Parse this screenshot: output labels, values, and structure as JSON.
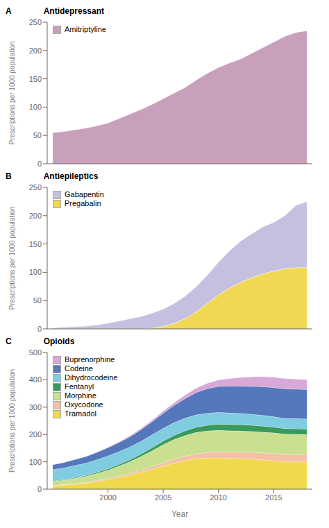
{
  "chart_data": [
    {
      "type": "area",
      "title": "Antidepressant",
      "annotations": [
        "A"
      ],
      "y_label": "Prescriptions per 1000 population",
      "x": [
        1995,
        1996,
        1997,
        1998,
        1999,
        2000,
        2001,
        2002,
        2003,
        2004,
        2005,
        2006,
        2007,
        2008,
        2009,
        2010,
        2011,
        2012,
        2013,
        2014,
        2015,
        2016,
        2017,
        2018
      ],
      "xlim": [
        1994.5,
        2018.5
      ],
      "xticks": [
        2000,
        2005,
        2010,
        2015
      ],
      "ylim": [
        0,
        250
      ],
      "yticks": [
        0,
        50,
        100,
        150,
        200,
        250
      ],
      "stacked": true,
      "legend": "upper left",
      "tick_labels": "y",
      "series": [
        {
          "name": "Amitriptyline",
          "color": "#c9a0bb",
          "values": [
            55,
            57,
            60,
            63,
            67,
            72,
            80,
            88,
            96,
            105,
            115,
            125,
            135,
            148,
            160,
            170,
            178,
            185,
            195,
            205,
            215,
            225,
            232,
            235
          ]
        }
      ]
    },
    {
      "type": "area",
      "title": "Antiepileptics",
      "annotations": [
        "B"
      ],
      "y_label": "Prescriptions per 1000 population",
      "x": [
        1995,
        1996,
        1997,
        1998,
        1999,
        2000,
        2001,
        2002,
        2003,
        2004,
        2005,
        2006,
        2007,
        2008,
        2009,
        2010,
        2011,
        2012,
        2013,
        2014,
        2015,
        2016,
        2017,
        2018
      ],
      "xlim": [
        1994.5,
        2018.5
      ],
      "xticks": [
        2000,
        2005,
        2010,
        2015
      ],
      "ylim": [
        0,
        250
      ],
      "yticks": [
        0,
        50,
        100,
        150,
        200,
        250
      ],
      "stacked": false,
      "legend": "upper left",
      "tick_labels": "y",
      "series": [
        {
          "name": "Gabapentin",
          "color": "#c5c0e0",
          "values": [
            2,
            3,
            4,
            5,
            7,
            10,
            14,
            18,
            22,
            28,
            35,
            45,
            58,
            75,
            95,
            118,
            138,
            155,
            168,
            180,
            188,
            200,
            218,
            225
          ]
        },
        {
          "name": "Pregabalin",
          "color": "#f0d855",
          "values": [
            0,
            0,
            0,
            0,
            0,
            0,
            0,
            0,
            0,
            1,
            4,
            10,
            18,
            30,
            45,
            60,
            72,
            82,
            90,
            97,
            102,
            106,
            108,
            108
          ]
        }
      ]
    },
    {
      "type": "area",
      "title": "Opioids",
      "annotations": [
        "C"
      ],
      "y_label": "Prescriptions per 1000 population",
      "x_label": "Year",
      "x": [
        1995,
        1996,
        1997,
        1998,
        1999,
        2000,
        2001,
        2002,
        2003,
        2004,
        2005,
        2006,
        2007,
        2008,
        2009,
        2010,
        2011,
        2012,
        2013,
        2014,
        2015,
        2016,
        2017,
        2018
      ],
      "xlim": [
        1994.5,
        2018.5
      ],
      "xticks": [
        2000,
        2005,
        2010,
        2015
      ],
      "ylim": [
        0,
        500
      ],
      "yticks": [
        0,
        100,
        200,
        300,
        400,
        500
      ],
      "stacked": true,
      "legend": "upper left",
      "series": [
        {
          "name": "Tramadol",
          "color": "#f0d94c",
          "values": [
            12,
            15,
            18,
            22,
            28,
            35,
            43,
            52,
            62,
            73,
            85,
            96,
            105,
            112,
            114,
            115,
            113,
            112,
            110,
            107,
            104,
            101,
            100,
            99
          ]
        },
        {
          "name": "Oxycodone",
          "color": "#f5c0a8",
          "values": [
            2,
            2,
            3,
            3,
            4,
            5,
            6,
            7,
            8,
            10,
            12,
            14,
            16,
            18,
            20,
            22,
            23,
            24,
            25,
            26,
            27,
            27,
            27,
            27
          ]
        },
        {
          "name": "Morphine",
          "color": "#c8e090",
          "values": [
            14,
            16,
            19,
            22,
            26,
            30,
            36,
            42,
            50,
            58,
            66,
            72,
            76,
            78,
            79,
            79,
            78,
            77,
            76,
            76,
            75,
            74,
            74,
            74
          ]
        },
        {
          "name": "Fentanyl",
          "color": "#3a9a5c",
          "values": [
            2,
            2,
            3,
            3,
            4,
            5,
            6,
            7,
            9,
            11,
            13,
            15,
            17,
            19,
            21,
            22,
            23,
            23,
            23,
            22,
            21,
            20,
            20,
            20
          ]
        },
        {
          "name": "Dihydrocodeine",
          "color": "#80cce0",
          "values": [
            42,
            43,
            44,
            45,
            46,
            47,
            47,
            47,
            47,
            47,
            47,
            47,
            46,
            45,
            44,
            43,
            42,
            41,
            40,
            39,
            38,
            37,
            37,
            37
          ]
        },
        {
          "name": "Codeine",
          "color": "#5577bb",
          "values": [
            18,
            20,
            22,
            25,
            27,
            30,
            33,
            37,
            42,
            48,
            55,
            63,
            72,
            82,
            90,
            95,
            98,
            100,
            102,
            105,
            107,
            108,
            108,
            108
          ]
        },
        {
          "name": "Buprenorphine",
          "color": "#d8a8d8",
          "values": [
            0,
            0,
            0,
            0,
            1,
            2,
            3,
            4,
            5,
            6,
            8,
            10,
            13,
            16,
            20,
            24,
            28,
            32,
            35,
            37,
            38,
            38,
            37,
            36
          ]
        }
      ]
    }
  ]
}
